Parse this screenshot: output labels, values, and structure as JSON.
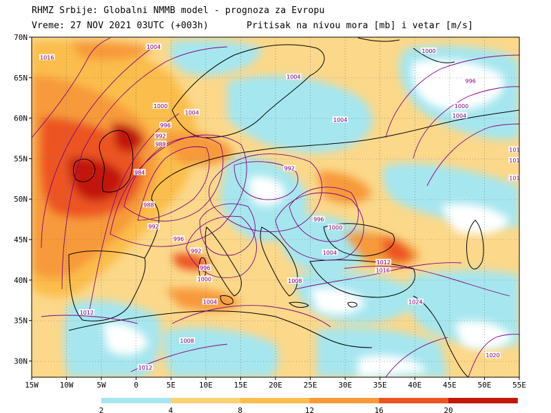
{
  "header": {
    "line1": "RHMZ Srbije: Globalni NMMB model - prognoza za Evropu",
    "line2": "Vreme: 27 NOV 2021 03UTC (+003h)",
    "line3": "Pritisak na nivou mora [mb] i vetar [m/s]"
  },
  "map": {
    "region": "Europe",
    "lon_range": [
      -15,
      55
    ],
    "lat_range": [
      28,
      70
    ],
    "lon_ticks": [
      "15W",
      "10W",
      "5W",
      "0",
      "5E",
      "10E",
      "15E",
      "20E",
      "25E",
      "30E",
      "35E",
      "40E",
      "45E",
      "50E",
      "55E"
    ],
    "lat_ticks": [
      "30N",
      "35N",
      "40N",
      "45N",
      "50N",
      "55N",
      "60N",
      "65N",
      "70N"
    ],
    "grid": "dotted",
    "isobar_color": "#800080",
    "coastline_color": "#000000"
  },
  "isobar_labels": [
    {
      "text": "1016",
      "lon": -12.8,
      "lat": 67.5
    },
    {
      "text": "1004",
      "lon": 2.5,
      "lat": 68.8
    },
    {
      "text": "1000",
      "lon": 3.5,
      "lat": 61.5
    },
    {
      "text": "996",
      "lon": 4.2,
      "lat": 59.1
    },
    {
      "text": "992",
      "lon": 3.5,
      "lat": 57.8
    },
    {
      "text": "988",
      "lon": 3.5,
      "lat": 56.8
    },
    {
      "text": "984",
      "lon": 0.5,
      "lat": 53.3
    },
    {
      "text": "988",
      "lon": 1.8,
      "lat": 49.3
    },
    {
      "text": "992",
      "lon": 2.5,
      "lat": 46.6
    },
    {
      "text": "996",
      "lon": 6.1,
      "lat": 45.1
    },
    {
      "text": "992",
      "lon": 8.6,
      "lat": 43.6
    },
    {
      "text": "996",
      "lon": 9.9,
      "lat": 41.5
    },
    {
      "text": "1000",
      "lon": 9.8,
      "lat": 40.1
    },
    {
      "text": "1004",
      "lon": 10.6,
      "lat": 37.3
    },
    {
      "text": "1012",
      "lon": -7.1,
      "lat": 36.0
    },
    {
      "text": "1008",
      "lon": 7.3,
      "lat": 32.5
    },
    {
      "text": "1012",
      "lon": 1.3,
      "lat": 29.2
    },
    {
      "text": "1004",
      "lon": 8.0,
      "lat": 60.7
    },
    {
      "text": "1004",
      "lon": 22.6,
      "lat": 65.1
    },
    {
      "text": "1004",
      "lon": 29.3,
      "lat": 59.8
    },
    {
      "text": "992",
      "lon": 22.0,
      "lat": 53.8
    },
    {
      "text": "996",
      "lon": 26.2,
      "lat": 47.5
    },
    {
      "text": "1000",
      "lon": 28.6,
      "lat": 46.5
    },
    {
      "text": "1004",
      "lon": 27.8,
      "lat": 43.4
    },
    {
      "text": "1008",
      "lon": 22.8,
      "lat": 39.9
    },
    {
      "text": "1012",
      "lon": 35.5,
      "lat": 42.2
    },
    {
      "text": "1016",
      "lon": 35.4,
      "lat": 41.2
    },
    {
      "text": "1024",
      "lon": 40.1,
      "lat": 37.3
    },
    {
      "text": "1000",
      "lon": 42.0,
      "lat": 68.3
    },
    {
      "text": "996",
      "lon": 48.0,
      "lat": 64.6
    },
    {
      "text": "1000",
      "lon": 46.7,
      "lat": 61.5
    },
    {
      "text": "1004",
      "lon": 46.4,
      "lat": 60.3
    },
    {
      "text": "101",
      "lon": 54.3,
      "lat": 56.1
    },
    {
      "text": "101",
      "lon": 54.3,
      "lat": 54.8
    },
    {
      "text": "101",
      "lon": 54.3,
      "lat": 52.6
    },
    {
      "text": "1020",
      "lon": 51.2,
      "lat": 30.7
    }
  ],
  "colorbar": {
    "labels": [
      "2",
      "4",
      "8",
      "12",
      "16",
      "20"
    ],
    "colors": [
      "#a6e6ef",
      "#fad274",
      "#fbbd4c",
      "#f79a3a",
      "#ec5520",
      "#c21808"
    ]
  }
}
